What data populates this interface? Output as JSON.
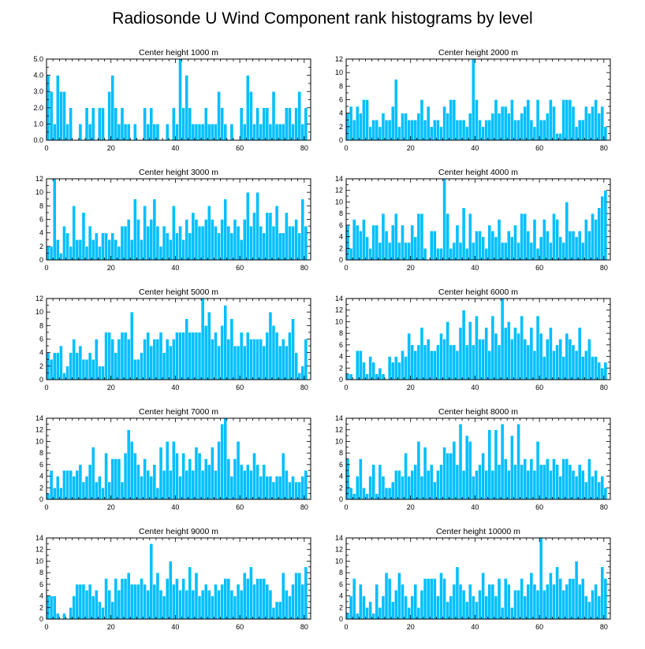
{
  "title": "Radiosonde U Wind Component rank histograms by level",
  "colors": {
    "bar": "#00bfff",
    "axis": "#000000",
    "background": "#ffffff"
  },
  "chart_data": [
    {
      "type": "bar",
      "title": "Center height 1000 m",
      "xlim": [
        0,
        82
      ],
      "ylim": [
        0,
        5
      ],
      "xticks": [
        0,
        20,
        40,
        60,
        80
      ],
      "yticks": [
        0,
        1,
        2,
        3,
        4,
        5
      ],
      "ytick_labels": [
        "0.0",
        "1.0",
        "2.0",
        "3.0",
        "4.0",
        "5.0"
      ],
      "values": [
        4,
        3,
        1,
        4,
        3,
        3,
        1,
        2,
        0,
        0,
        1,
        0,
        2,
        1,
        2,
        0,
        2,
        2,
        0,
        3,
        4,
        2,
        1,
        2,
        1,
        1,
        0,
        1,
        0,
        0,
        2,
        1,
        2,
        1,
        1,
        0,
        0,
        1,
        0,
        2,
        1,
        5,
        2,
        4,
        2,
        1,
        1,
        1,
        1,
        2,
        1,
        1,
        1,
        3,
        2,
        1,
        0,
        1,
        0,
        0,
        2,
        1,
        4,
        3,
        1,
        2,
        1,
        2,
        2,
        1,
        3,
        1,
        1,
        1,
        2,
        2,
        1,
        2,
        3,
        1,
        2
      ]
    },
    {
      "type": "bar",
      "title": "Center height 2000 m",
      "xlim": [
        0,
        82
      ],
      "ylim": [
        0,
        12
      ],
      "xticks": [
        0,
        20,
        40,
        60,
        80
      ],
      "yticks": [
        0,
        2,
        4,
        6,
        8,
        10,
        12
      ],
      "ytick_labels": [
        "0",
        "2",
        "4",
        "6",
        "8",
        "10",
        "12"
      ],
      "values": [
        4,
        5,
        3,
        5,
        4,
        6,
        6,
        2,
        3,
        3,
        2,
        4,
        3,
        3,
        5,
        9,
        2,
        4,
        4,
        3,
        3,
        3,
        4,
        6,
        3,
        5,
        2,
        3,
        3,
        2,
        5,
        4,
        6,
        6,
        3,
        3,
        3,
        2,
        4,
        12,
        6,
        3,
        2,
        3,
        3,
        4,
        6,
        4,
        5,
        5,
        4,
        6,
        3,
        3,
        4,
        5,
        6,
        3,
        2,
        6,
        3,
        3,
        4,
        6,
        5,
        1,
        1,
        6,
        6,
        6,
        5,
        2,
        3,
        3,
        5,
        4,
        5,
        6,
        4,
        5,
        2
      ]
    },
    {
      "type": "bar",
      "title": "Center height 3000 m",
      "xlim": [
        0,
        82
      ],
      "ylim": [
        0,
        12
      ],
      "xticks": [
        0,
        20,
        40,
        60,
        80
      ],
      "yticks": [
        0,
        2,
        4,
        6,
        8,
        10,
        12
      ],
      "ytick_labels": [
        "0",
        "2",
        "4",
        "6",
        "8",
        "10",
        "12"
      ],
      "values": [
        2,
        2,
        12,
        3,
        1,
        5,
        4,
        2,
        8,
        3,
        3,
        7,
        2,
        5,
        3,
        4,
        2,
        4,
        4,
        3,
        4,
        3,
        2,
        5,
        5,
        6,
        3,
        9,
        6,
        3,
        8,
        5,
        6,
        9,
        5,
        2,
        5,
        4,
        3,
        8,
        4,
        5,
        3,
        6,
        4,
        7,
        6,
        5,
        5,
        6,
        8,
        6,
        5,
        4,
        6,
        9,
        5,
        4,
        6,
        5,
        3,
        6,
        10,
        5,
        7,
        10,
        5,
        4,
        7,
        7,
        5,
        8,
        4,
        4,
        7,
        5,
        5,
        6,
        4,
        9,
        5
      ]
    },
    {
      "type": "bar",
      "title": "Center height 4000 m",
      "xlim": [
        0,
        82
      ],
      "ylim": [
        0,
        14
      ],
      "xticks": [
        0,
        20,
        40,
        60,
        80
      ],
      "yticks": [
        0,
        2,
        4,
        6,
        8,
        10,
        12,
        14
      ],
      "ytick_labels": [
        "0",
        "2",
        "4",
        "6",
        "8",
        "10",
        "12",
        "14"
      ],
      "values": [
        6,
        2,
        7,
        6,
        5,
        7,
        4,
        2,
        6,
        6,
        3,
        8,
        5,
        3,
        6,
        8,
        3,
        6,
        3,
        3,
        6,
        4,
        8,
        8,
        2,
        0,
        5,
        5,
        2,
        2,
        14,
        8,
        2,
        3,
        6,
        3,
        9,
        2,
        8,
        3,
        5,
        5,
        4,
        2,
        6,
        5,
        4,
        7,
        3,
        3,
        5,
        4,
        6,
        3,
        8,
        8,
        5,
        3,
        7,
        2,
        4,
        7,
        5,
        3,
        8,
        7,
        4,
        3,
        10,
        5,
        5,
        4,
        5,
        3,
        7,
        5,
        8,
        7,
        9,
        11,
        12
      ]
    },
    {
      "type": "bar",
      "title": "Center height 5000 m",
      "xlim": [
        0,
        82
      ],
      "ylim": [
        0,
        12
      ],
      "xticks": [
        0,
        20,
        40,
        60,
        80
      ],
      "yticks": [
        0,
        2,
        4,
        6,
        8,
        10,
        12
      ],
      "ytick_labels": [
        "0",
        "2",
        "4",
        "6",
        "8",
        "10",
        "12"
      ],
      "values": [
        4,
        3,
        4,
        4,
        5,
        1,
        2,
        4,
        6,
        4,
        5,
        3,
        3,
        4,
        3,
        6,
        2,
        2,
        7,
        7,
        6,
        4,
        6,
        7,
        7,
        6,
        10,
        3,
        3,
        4,
        6,
        7,
        5,
        6,
        6,
        7,
        4,
        6,
        5,
        6,
        7,
        7,
        7,
        9,
        7,
        7,
        7,
        7,
        12,
        8,
        10,
        6,
        7,
        5,
        8,
        11,
        6,
        9,
        5,
        5,
        7,
        5,
        7,
        6,
        6,
        6,
        6,
        5,
        7,
        10,
        8,
        7,
        5,
        6,
        5,
        7,
        9,
        4,
        1,
        2,
        6
      ]
    },
    {
      "type": "bar",
      "title": "Center height 6000 m",
      "xlim": [
        0,
        82
      ],
      "ylim": [
        0,
        14
      ],
      "xticks": [
        0,
        20,
        40,
        60,
        80
      ],
      "yticks": [
        0,
        2,
        4,
        6,
        8,
        10,
        12,
        14
      ],
      "ytick_labels": [
        "0",
        "2",
        "4",
        "6",
        "8",
        "10",
        "12",
        "14"
      ],
      "values": [
        1,
        1,
        0,
        5,
        5,
        3,
        1,
        4,
        3,
        1,
        2,
        1,
        0,
        4,
        3,
        4,
        3,
        5,
        4,
        8,
        6,
        5,
        6,
        9,
        6,
        7,
        5,
        5,
        6,
        8,
        7,
        10,
        6,
        6,
        5,
        9,
        12,
        6,
        10,
        6,
        11,
        7,
        7,
        9,
        5,
        11,
        8,
        6,
        14,
        9,
        10,
        7,
        9,
        8,
        11,
        7,
        6,
        9,
        5,
        11,
        8,
        4,
        7,
        9,
        5,
        6,
        7,
        4,
        8,
        7,
        6,
        5,
        9,
        4,
        5,
        7,
        4,
        4,
        3,
        2,
        3
      ]
    },
    {
      "type": "bar",
      "title": "Center height 7000 m",
      "xlim": [
        0,
        82
      ],
      "ylim": [
        0,
        14
      ],
      "xticks": [
        0,
        20,
        40,
        60,
        80
      ],
      "yticks": [
        0,
        2,
        4,
        6,
        8,
        10,
        12,
        14
      ],
      "ytick_labels": [
        "0",
        "2",
        "4",
        "6",
        "8",
        "10",
        "12",
        "14"
      ],
      "values": [
        1,
        5,
        2,
        4,
        2,
        5,
        5,
        5,
        4,
        5,
        6,
        3,
        4,
        6,
        9,
        3,
        4,
        2,
        8,
        3,
        7,
        7,
        7,
        3,
        8,
        12,
        10,
        8,
        6,
        4,
        7,
        5,
        4,
        6,
        2,
        9,
        5,
        10,
        5,
        10,
        8,
        4,
        8,
        5,
        7,
        5,
        9,
        8,
        5,
        7,
        6,
        9,
        5,
        10,
        13,
        14,
        7,
        4,
        7,
        10,
        6,
        5,
        6,
        5,
        8,
        6,
        4,
        6,
        4,
        4,
        3,
        4,
        4,
        8,
        5,
        3,
        4,
        3,
        3,
        4,
        5
      ]
    },
    {
      "type": "bar",
      "title": "Center height 8000 m",
      "xlim": [
        0,
        82
      ],
      "ylim": [
        0,
        14
      ],
      "xticks": [
        0,
        20,
        40,
        60,
        80
      ],
      "yticks": [
        0,
        2,
        4,
        6,
        8,
        10,
        12,
        14
      ],
      "ytick_labels": [
        "0",
        "2",
        "4",
        "6",
        "8",
        "10",
        "12",
        "14"
      ],
      "values": [
        7,
        2,
        1,
        4,
        7,
        2,
        1,
        4,
        6,
        1,
        6,
        4,
        2,
        2,
        3,
        5,
        5,
        4,
        8,
        4,
        5,
        6,
        10,
        4,
        9,
        5,
        6,
        3,
        5,
        6,
        9,
        8,
        8,
        10,
        6,
        13,
        5,
        11,
        10,
        4,
        5,
        6,
        8,
        5,
        12,
        5,
        12,
        6,
        13,
        7,
        5,
        11,
        6,
        13,
        6,
        7,
        5,
        7,
        5,
        10,
        6,
        6,
        7,
        5,
        7,
        6,
        4,
        7,
        7,
        6,
        5,
        4,
        6,
        5,
        3,
        7,
        4,
        5,
        3,
        4,
        2
      ]
    },
    {
      "type": "bar",
      "title": "Center height 9000 m",
      "xlim": [
        0,
        82
      ],
      "ylim": [
        0,
        14
      ],
      "xticks": [
        0,
        20,
        40,
        60,
        80
      ],
      "yticks": [
        0,
        2,
        4,
        6,
        8,
        10,
        12,
        14
      ],
      "ytick_labels": [
        "0",
        "2",
        "4",
        "6",
        "8",
        "10",
        "12",
        "14"
      ],
      "values": [
        4,
        4,
        4,
        1,
        0,
        1,
        0,
        2,
        4,
        6,
        6,
        6,
        5,
        6,
        4,
        5,
        3,
        2,
        7,
        5,
        3,
        7,
        5,
        7,
        7,
        8,
        6,
        6,
        6,
        7,
        6,
        5,
        13,
        6,
        8,
        5,
        4,
        7,
        10,
        6,
        7,
        5,
        7,
        5,
        9,
        5,
        8,
        4,
        5,
        6,
        5,
        4,
        6,
        5,
        6,
        7,
        7,
        5,
        4,
        6,
        5,
        8,
        7,
        9,
        6,
        7,
        7,
        7,
        6,
        5,
        2,
        3,
        3,
        8,
        5,
        4,
        6,
        8,
        8,
        6,
        9
      ]
    },
    {
      "type": "bar",
      "title": "Center height 10000 m",
      "xlim": [
        0,
        82
      ],
      "ylim": [
        0,
        14
      ],
      "xticks": [
        0,
        20,
        40,
        60,
        80
      ],
      "yticks": [
        0,
        2,
        4,
        6,
        8,
        10,
        12,
        14
      ],
      "ytick_labels": [
        "0",
        "2",
        "4",
        "6",
        "8",
        "10",
        "12",
        "14"
      ],
      "values": [
        1,
        4,
        7,
        1,
        6,
        4,
        2,
        3,
        1,
        6,
        2,
        4,
        8,
        7,
        3,
        5,
        8,
        6,
        4,
        2,
        4,
        6,
        2,
        5,
        7,
        7,
        7,
        7,
        4,
        8,
        7,
        3,
        4,
        6,
        9,
        6,
        5,
        3,
        6,
        4,
        3,
        5,
        8,
        4,
        6,
        6,
        4,
        7,
        2,
        7,
        6,
        2,
        5,
        5,
        7,
        4,
        6,
        8,
        6,
        5,
        14,
        5,
        6,
        8,
        6,
        9,
        7,
        5,
        6,
        7,
        7,
        10,
        6,
        7,
        4,
        3,
        5,
        6,
        4,
        9,
        7
      ]
    }
  ]
}
